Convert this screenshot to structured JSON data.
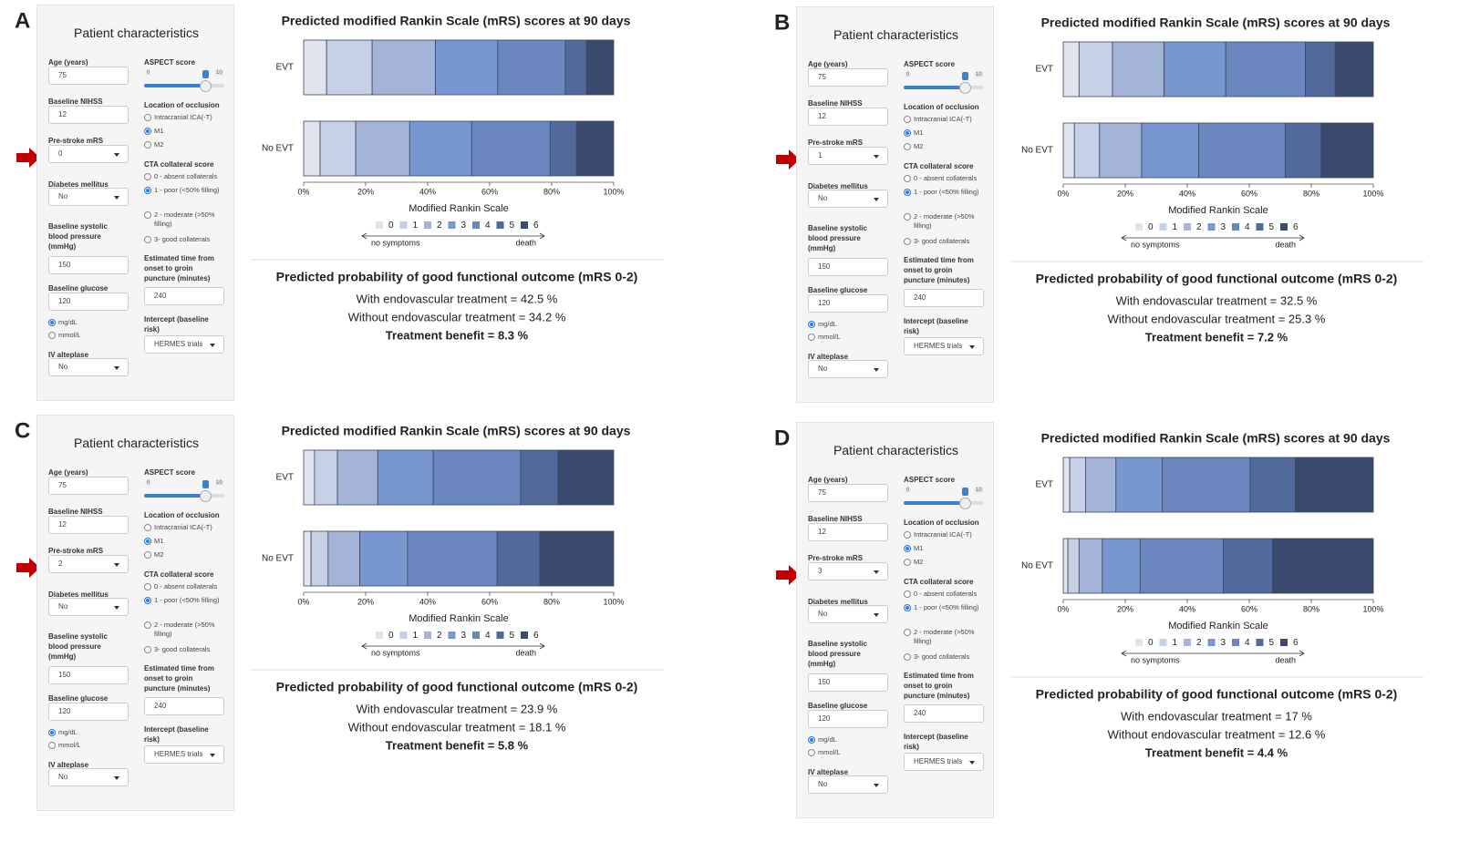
{
  "form": {
    "title": "Patient characteristics",
    "age_label": "Age (years)",
    "nihss_label": "Baseline NIHSS",
    "mrs_label": "Pre-stroke mRS",
    "diabetes_label": "Diabetes mellitus",
    "sbp_label": "Baseline systolic blood pressure (mmHg)",
    "glucose_label": "Baseline glucose",
    "units": [
      {
        "label": "mg/dL",
        "checked": true
      },
      {
        "label": "mmol/L",
        "checked": false
      }
    ],
    "alteplase_label": "IV alteplase",
    "aspect_label": "ASPECT score",
    "aspect_min": "0",
    "aspect_max": "10",
    "location_label": "Location of occlusion",
    "location_options": [
      {
        "label": "Intracranial ICA(-T)",
        "checked": false
      },
      {
        "label": "M1",
        "checked": true
      },
      {
        "label": "M2",
        "checked": false
      }
    ],
    "cta_label": "CTA collateral score",
    "cta_options": [
      {
        "label": "0 - absent collaterals",
        "checked": false
      },
      {
        "label": "1 - poor (<50% filling)",
        "checked": true
      },
      {
        "label": "2 - moderate (>50% filling)",
        "checked": false
      },
      {
        "label": "3- good collaterals",
        "checked": false
      }
    ],
    "time_label": "Estimated time from onset to groin puncture (minutes)",
    "intercept_label": "Intercept (baseline risk)"
  },
  "panels": [
    {
      "label": "A",
      "age": "75",
      "nihss": "12",
      "mrs": "0",
      "diabetes": "No",
      "sbp": "150",
      "glucose": "120",
      "alteplase": "No",
      "time": "240",
      "intercept": "HERMES trials",
      "outcome": {
        "title": "Predicted probability of good functional outcome (mRS 0-2)",
        "with": "With endovascular treatment = 42.5 %",
        "without": "Without endovascular treatment = 34.2 %",
        "benefit": "Treatment benefit = 8.3 %"
      }
    },
    {
      "label": "B",
      "age": "75",
      "nihss": "12",
      "mrs": "1",
      "diabetes": "No",
      "sbp": "150",
      "glucose": "120",
      "alteplase": "No",
      "time": "240",
      "intercept": "HERMES trials",
      "outcome": {
        "title": "Predicted probability of good functional outcome (mRS 0-2)",
        "with": "With endovascular treatment = 32.5 %",
        "without": "Without endovascular treatment = 25.3 %",
        "benefit": "Treatment benefit = 7.2 %"
      }
    },
    {
      "label": "C",
      "age": "75",
      "nihss": "12",
      "mrs": "2",
      "diabetes": "No",
      "sbp": "150",
      "glucose": "120",
      "alteplase": "No",
      "time": "240",
      "intercept": "HERMES trials",
      "outcome": {
        "title": "Predicted probability of good functional outcome (mRS 0-2)",
        "with": "With endovascular treatment = 23.9 %",
        "without": "Without endovascular treatment = 18.1 %",
        "benefit": "Treatment benefit = 5.8 %"
      }
    },
    {
      "label": "D",
      "age": "75",
      "nihss": "12",
      "mrs": "3",
      "diabetes": "No",
      "sbp": "150",
      "glucose": "120",
      "alteplase": "No",
      "time": "240",
      "intercept": "HERMES trials",
      "outcome": {
        "title": "Predicted probability of good functional outcome (mRS 0-2)",
        "with": "With endovascular treatment = 17 %",
        "without": "Without endovascular treatment = 12.6 %",
        "benefit": "Treatment benefit = 4.4 %"
      }
    }
  ],
  "chart_data": [
    {
      "type": "bar",
      "orientation": "horizontal",
      "stacked": true,
      "title": "Predicted modified Rankin Scale (mRS) scores at 90 days",
      "categories": [
        "EVT",
        "No EVT"
      ],
      "xlabel": "Modified Rankin Scale",
      "annotations": [
        "no symptoms",
        "death"
      ],
      "xlim": [
        0,
        100
      ],
      "xticks": [
        {
          "value": 0,
          "label": "0%"
        },
        {
          "value": 20,
          "label": "20%"
        },
        {
          "value": 40,
          "label": "40%"
        },
        {
          "value": 60,
          "label": "60%"
        },
        {
          "value": 80,
          "label": "80%"
        },
        {
          "value": 100,
          "label": "100%"
        }
      ],
      "series": [
        {
          "name": "0",
          "color": "#dfe4ef",
          "values": [
            7.4,
            5.3
          ]
        },
        {
          "name": "1",
          "color": "#c6d0e6",
          "values": [
            14.7,
            11.5
          ]
        },
        {
          "name": "2",
          "color": "#a4b4d8",
          "values": [
            20.4,
            17.4
          ]
        },
        {
          "name": "3",
          "color": "#7896cf",
          "values": [
            20.1,
            20.0
          ]
        },
        {
          "name": "4",
          "color": "#6a88bf",
          "values": [
            21.8,
            25.3
          ]
        },
        {
          "name": "5",
          "color": "#516a9c",
          "values": [
            6.8,
            8.5
          ]
        },
        {
          "name": "6",
          "color": "#3a4a6e",
          "values": [
            8.8,
            12.0
          ]
        }
      ]
    },
    {
      "type": "bar",
      "orientation": "horizontal",
      "stacked": true,
      "title": "Predicted modified Rankin Scale (mRS) scores at 90 days",
      "categories": [
        "EVT",
        "No EVT"
      ],
      "xlabel": "Modified Rankin Scale",
      "annotations": [
        "no symptoms",
        "death"
      ],
      "xlim": [
        0,
        100
      ],
      "xticks": [
        {
          "value": 0,
          "label": "0%"
        },
        {
          "value": 20,
          "label": "20%"
        },
        {
          "value": 40,
          "label": "40%"
        },
        {
          "value": 60,
          "label": "60%"
        },
        {
          "value": 80,
          "label": "80%"
        },
        {
          "value": 100,
          "label": "100%"
        }
      ],
      "series": [
        {
          "name": "0",
          "color": "#dfe4ef",
          "values": [
            5.1,
            3.6
          ]
        },
        {
          "name": "1",
          "color": "#c6d0e6",
          "values": [
            10.8,
            8.1
          ]
        },
        {
          "name": "2",
          "color": "#a4b4d8",
          "values": [
            16.6,
            13.6
          ]
        },
        {
          "name": "3",
          "color": "#7896cf",
          "values": [
            19.9,
            18.4
          ]
        },
        {
          "name": "4",
          "color": "#6a88bf",
          "values": [
            25.7,
            27.9
          ]
        },
        {
          "name": "5",
          "color": "#516a9c",
          "values": [
            9.6,
            11.6
          ]
        },
        {
          "name": "6",
          "color": "#3a4a6e",
          "values": [
            12.3,
            16.8
          ]
        }
      ]
    },
    {
      "type": "bar",
      "orientation": "horizontal",
      "stacked": true,
      "title": "Predicted modified Rankin Scale (mRS) scores at 90 days",
      "categories": [
        "EVT",
        "No EVT"
      ],
      "xlabel": "Modified Rankin Scale",
      "annotations": [
        "no symptoms",
        "death"
      ],
      "xlim": [
        0,
        100
      ],
      "xticks": [
        {
          "value": 0,
          "label": "0%"
        },
        {
          "value": 20,
          "label": "20%"
        },
        {
          "value": 40,
          "label": "40%"
        },
        {
          "value": 60,
          "label": "60%"
        },
        {
          "value": 80,
          "label": "80%"
        },
        {
          "value": 100,
          "label": "100%"
        }
      ],
      "series": [
        {
          "name": "0",
          "color": "#dfe4ef",
          "values": [
            3.5,
            2.4
          ]
        },
        {
          "name": "1",
          "color": "#c6d0e6",
          "values": [
            7.4,
            5.5
          ]
        },
        {
          "name": "2",
          "color": "#a4b4d8",
          "values": [
            13.0,
            10.2
          ]
        },
        {
          "name": "3",
          "color": "#7896cf",
          "values": [
            17.9,
            15.4
          ]
        },
        {
          "name": "4",
          "color": "#6a88bf",
          "values": [
            28.2,
            28.9
          ]
        },
        {
          "name": "5",
          "color": "#516a9c",
          "values": [
            12.1,
            13.8
          ]
        },
        {
          "name": "6",
          "color": "#3a4a6e",
          "values": [
            17.9,
            23.8
          ]
        }
      ]
    },
    {
      "type": "bar",
      "orientation": "horizontal",
      "stacked": true,
      "title": "Predicted modified Rankin Scale (mRS) scores at 90 days",
      "categories": [
        "EVT",
        "No EVT"
      ],
      "xlabel": "Modified Rankin Scale",
      "annotations": [
        "no symptoms",
        "death"
      ],
      "xlim": [
        0,
        100
      ],
      "xticks": [
        {
          "value": 0,
          "label": "0%"
        },
        {
          "value": 20,
          "label": "20%"
        },
        {
          "value": 40,
          "label": "40%"
        },
        {
          "value": 60,
          "label": "60%"
        },
        {
          "value": 80,
          "label": "80%"
        },
        {
          "value": 100,
          "label": "100%"
        }
      ],
      "series": [
        {
          "name": "0",
          "color": "#dfe4ef",
          "values": [
            2.1,
            1.5
          ]
        },
        {
          "name": "1",
          "color": "#c6d0e6",
          "values": [
            5.1,
            3.6
          ]
        },
        {
          "name": "2",
          "color": "#a4b4d8",
          "values": [
            9.8,
            7.5
          ]
        },
        {
          "name": "3",
          "color": "#7896cf",
          "values": [
            14.9,
            12.2
          ]
        },
        {
          "name": "4",
          "color": "#6a88bf",
          "values": [
            28.4,
            26.8
          ]
        },
        {
          "name": "5",
          "color": "#516a9c",
          "values": [
            14.6,
            15.9
          ]
        },
        {
          "name": "6",
          "color": "#3a4a6e",
          "values": [
            25.1,
            32.5
          ]
        }
      ]
    }
  ]
}
